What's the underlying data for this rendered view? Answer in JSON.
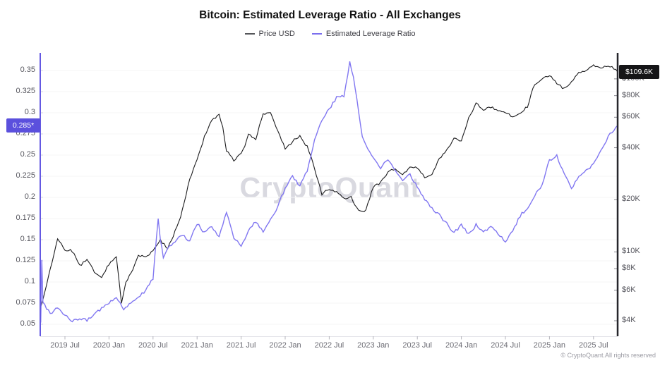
{
  "title": "Bitcoin: Estimated Leverage Ratio - All Exchanges",
  "legend": {
    "price": {
      "label": "Price USD",
      "swatch_color": "#55565a"
    },
    "leverage": {
      "label": "Estimated Leverage Ratio",
      "swatch_color": "#7b6fee"
    }
  },
  "watermark": "CryptoQuant",
  "left_badge": "0.285*",
  "right_badge": "$109.6K",
  "footer": {
    "copyright": "© CryptoQuant.All rights reserved"
  },
  "colors": {
    "price_line": "#1c1c1e",
    "leverage_line": "#8177f1",
    "left_axis_line": "#6459e2",
    "right_axis_line": "#26262b",
    "gridline": "#f4f4f6",
    "left_badge_bg": "#5b50dd",
    "right_badge_bg": "#151517"
  },
  "chart_data": {
    "type": "line",
    "title": "Bitcoin: Estimated Leverage Ratio - All Exchanges",
    "x_range": [
      "2019-03",
      "2025-10"
    ],
    "x_tick_labels": [
      "2019 Jul",
      "2020 Jan",
      "2020 Jul",
      "2021 Jan",
      "2021 Jul",
      "2022 Jan",
      "2022 Jul",
      "2023 Jan",
      "2023 Jul",
      "2024 Jan",
      "2024 Jul",
      "2025 Jan",
      "2025 Jul"
    ],
    "x_tick_month_offsets": [
      3,
      9,
      15,
      21,
      27,
      33,
      39,
      45,
      51,
      57,
      63,
      69,
      75
    ],
    "left_axis": {
      "name": "Estimated Leverage Ratio",
      "min": 0.05,
      "max": 0.35,
      "tick_values": [
        0.35,
        0.325,
        0.3,
        0.275,
        0.25,
        0.225,
        0.2,
        0.175,
        0.15,
        0.125,
        0.1,
        0.075,
        0.05
      ],
      "current_value": 0.285
    },
    "right_axis": {
      "name": "Price USD",
      "scale": "log",
      "unit": "USD",
      "tick_values_k": [
        100,
        80,
        60,
        40,
        20,
        10,
        8,
        6,
        4
      ],
      "current_value_k": 109.6
    },
    "grid": "horizontal-only",
    "legend_position": "top-center",
    "anchor_format": "[months_since_2019_04, value]",
    "series": [
      {
        "name": "Price USD",
        "axis": "right",
        "unit": "thousand USD",
        "color": "#1c1c1e",
        "points": [
          [
            -0.3,
            4.8
          ],
          [
            0,
            5.3
          ],
          [
            1,
            8.0
          ],
          [
            2,
            11.8
          ],
          [
            3,
            10.3
          ],
          [
            4,
            10.1
          ],
          [
            5,
            8.4
          ],
          [
            6,
            9.1
          ],
          [
            7,
            7.7
          ],
          [
            8,
            7.2
          ],
          [
            9,
            8.4
          ],
          [
            10,
            9.4
          ],
          [
            10.7,
            5.0
          ],
          [
            11.3,
            6.4
          ],
          [
            12,
            7.4
          ],
          [
            13,
            9.4
          ],
          [
            14,
            9.2
          ],
          [
            15,
            10.1
          ],
          [
            16,
            11.6
          ],
          [
            17,
            10.5
          ],
          [
            18,
            13.0
          ],
          [
            19,
            17.5
          ],
          [
            20,
            26
          ],
          [
            21,
            34
          ],
          [
            22,
            46
          ],
          [
            23,
            57
          ],
          [
            24,
            60
          ],
          [
            24.5,
            52
          ],
          [
            25,
            38
          ],
          [
            26,
            33
          ],
          [
            27,
            36
          ],
          [
            28,
            47
          ],
          [
            29,
            44
          ],
          [
            30,
            60
          ],
          [
            31,
            62
          ],
          [
            32,
            48
          ],
          [
            33,
            38
          ],
          [
            34,
            42
          ],
          [
            35,
            45
          ],
          [
            36,
            40
          ],
          [
            37,
            30
          ],
          [
            38,
            21
          ],
          [
            39,
            22.5
          ],
          [
            40,
            21.5
          ],
          [
            41,
            19.4
          ],
          [
            42,
            19.8
          ],
          [
            43,
            16.5
          ],
          [
            44,
            16.8
          ],
          [
            45,
            22.8
          ],
          [
            46,
            24
          ],
          [
            47,
            27.8
          ],
          [
            48,
            29
          ],
          [
            49,
            27.2
          ],
          [
            50,
            29.8
          ],
          [
            51,
            29.5
          ],
          [
            52,
            26.2
          ],
          [
            53,
            26.5
          ],
          [
            54,
            33.5
          ],
          [
            55,
            37
          ],
          [
            56,
            43
          ],
          [
            57,
            42.5
          ],
          [
            58,
            57
          ],
          [
            59,
            69
          ],
          [
            60,
            64
          ],
          [
            61,
            66.5
          ],
          [
            62,
            63
          ],
          [
            63,
            62
          ],
          [
            64,
            58.5
          ],
          [
            65,
            61
          ],
          [
            66,
            67
          ],
          [
            67,
            90
          ],
          [
            68,
            96
          ],
          [
            69,
            101
          ],
          [
            70,
            91
          ],
          [
            71,
            84
          ],
          [
            72,
            92
          ],
          [
            73,
            105
          ],
          [
            74,
            106
          ],
          [
            75,
            117
          ],
          [
            76,
            112
          ],
          [
            77,
            114
          ],
          [
            78.3,
            109.6
          ]
        ]
      },
      {
        "name": "Estimated Leverage Ratio",
        "axis": "left",
        "unit": "ratio",
        "color": "#8177f1",
        "points": [
          [
            -0.3,
            0.052
          ],
          [
            -0.15,
            0.124
          ],
          [
            0,
            0.075
          ],
          [
            1,
            0.062
          ],
          [
            2,
            0.07
          ],
          [
            3,
            0.062
          ],
          [
            4,
            0.056
          ],
          [
            5,
            0.06
          ],
          [
            6,
            0.058
          ],
          [
            7,
            0.064
          ],
          [
            8,
            0.072
          ],
          [
            9,
            0.078
          ],
          [
            10,
            0.083
          ],
          [
            11,
            0.071
          ],
          [
            12,
            0.079
          ],
          [
            13,
            0.086
          ],
          [
            14,
            0.092
          ],
          [
            15,
            0.105
          ],
          [
            15.7,
            0.175
          ],
          [
            16,
            0.15
          ],
          [
            16.4,
            0.128
          ],
          [
            17,
            0.14
          ],
          [
            18,
            0.147
          ],
          [
            19,
            0.156
          ],
          [
            20,
            0.15
          ],
          [
            21,
            0.17
          ],
          [
            22,
            0.158
          ],
          [
            23,
            0.165
          ],
          [
            24,
            0.154
          ],
          [
            25,
            0.183
          ],
          [
            26,
            0.152
          ],
          [
            27,
            0.145
          ],
          [
            28,
            0.162
          ],
          [
            29,
            0.175
          ],
          [
            30,
            0.163
          ],
          [
            31,
            0.176
          ],
          [
            32,
            0.192
          ],
          [
            33,
            0.212
          ],
          [
            34,
            0.226
          ],
          [
            35,
            0.214
          ],
          [
            36,
            0.232
          ],
          [
            37,
            0.268
          ],
          [
            38,
            0.29
          ],
          [
            39,
            0.302
          ],
          [
            40,
            0.315
          ],
          [
            41,
            0.318
          ],
          [
            41.8,
            0.358
          ],
          [
            42.3,
            0.34
          ],
          [
            43,
            0.3
          ],
          [
            43.5,
            0.27
          ],
          [
            44,
            0.26
          ],
          [
            45,
            0.245
          ],
          [
            46,
            0.232
          ],
          [
            47,
            0.242
          ],
          [
            48,
            0.228
          ],
          [
            49,
            0.218
          ],
          [
            50,
            0.228
          ],
          [
            51,
            0.212
          ],
          [
            52,
            0.198
          ],
          [
            53,
            0.19
          ],
          [
            54,
            0.181
          ],
          [
            55,
            0.171
          ],
          [
            56,
            0.16
          ],
          [
            57,
            0.166
          ],
          [
            58,
            0.157
          ],
          [
            59,
            0.17
          ],
          [
            60,
            0.161
          ],
          [
            61,
            0.168
          ],
          [
            62,
            0.159
          ],
          [
            63,
            0.149
          ],
          [
            64,
            0.162
          ],
          [
            65,
            0.179
          ],
          [
            66,
            0.188
          ],
          [
            67,
            0.203
          ],
          [
            68,
            0.214
          ],
          [
            69,
            0.244
          ],
          [
            70,
            0.249
          ],
          [
            71,
            0.226
          ],
          [
            72,
            0.211
          ],
          [
            73,
            0.224
          ],
          [
            74,
            0.231
          ],
          [
            75,
            0.239
          ],
          [
            76,
            0.254
          ],
          [
            77,
            0.27
          ],
          [
            78.3,
            0.285
          ]
        ]
      }
    ]
  }
}
